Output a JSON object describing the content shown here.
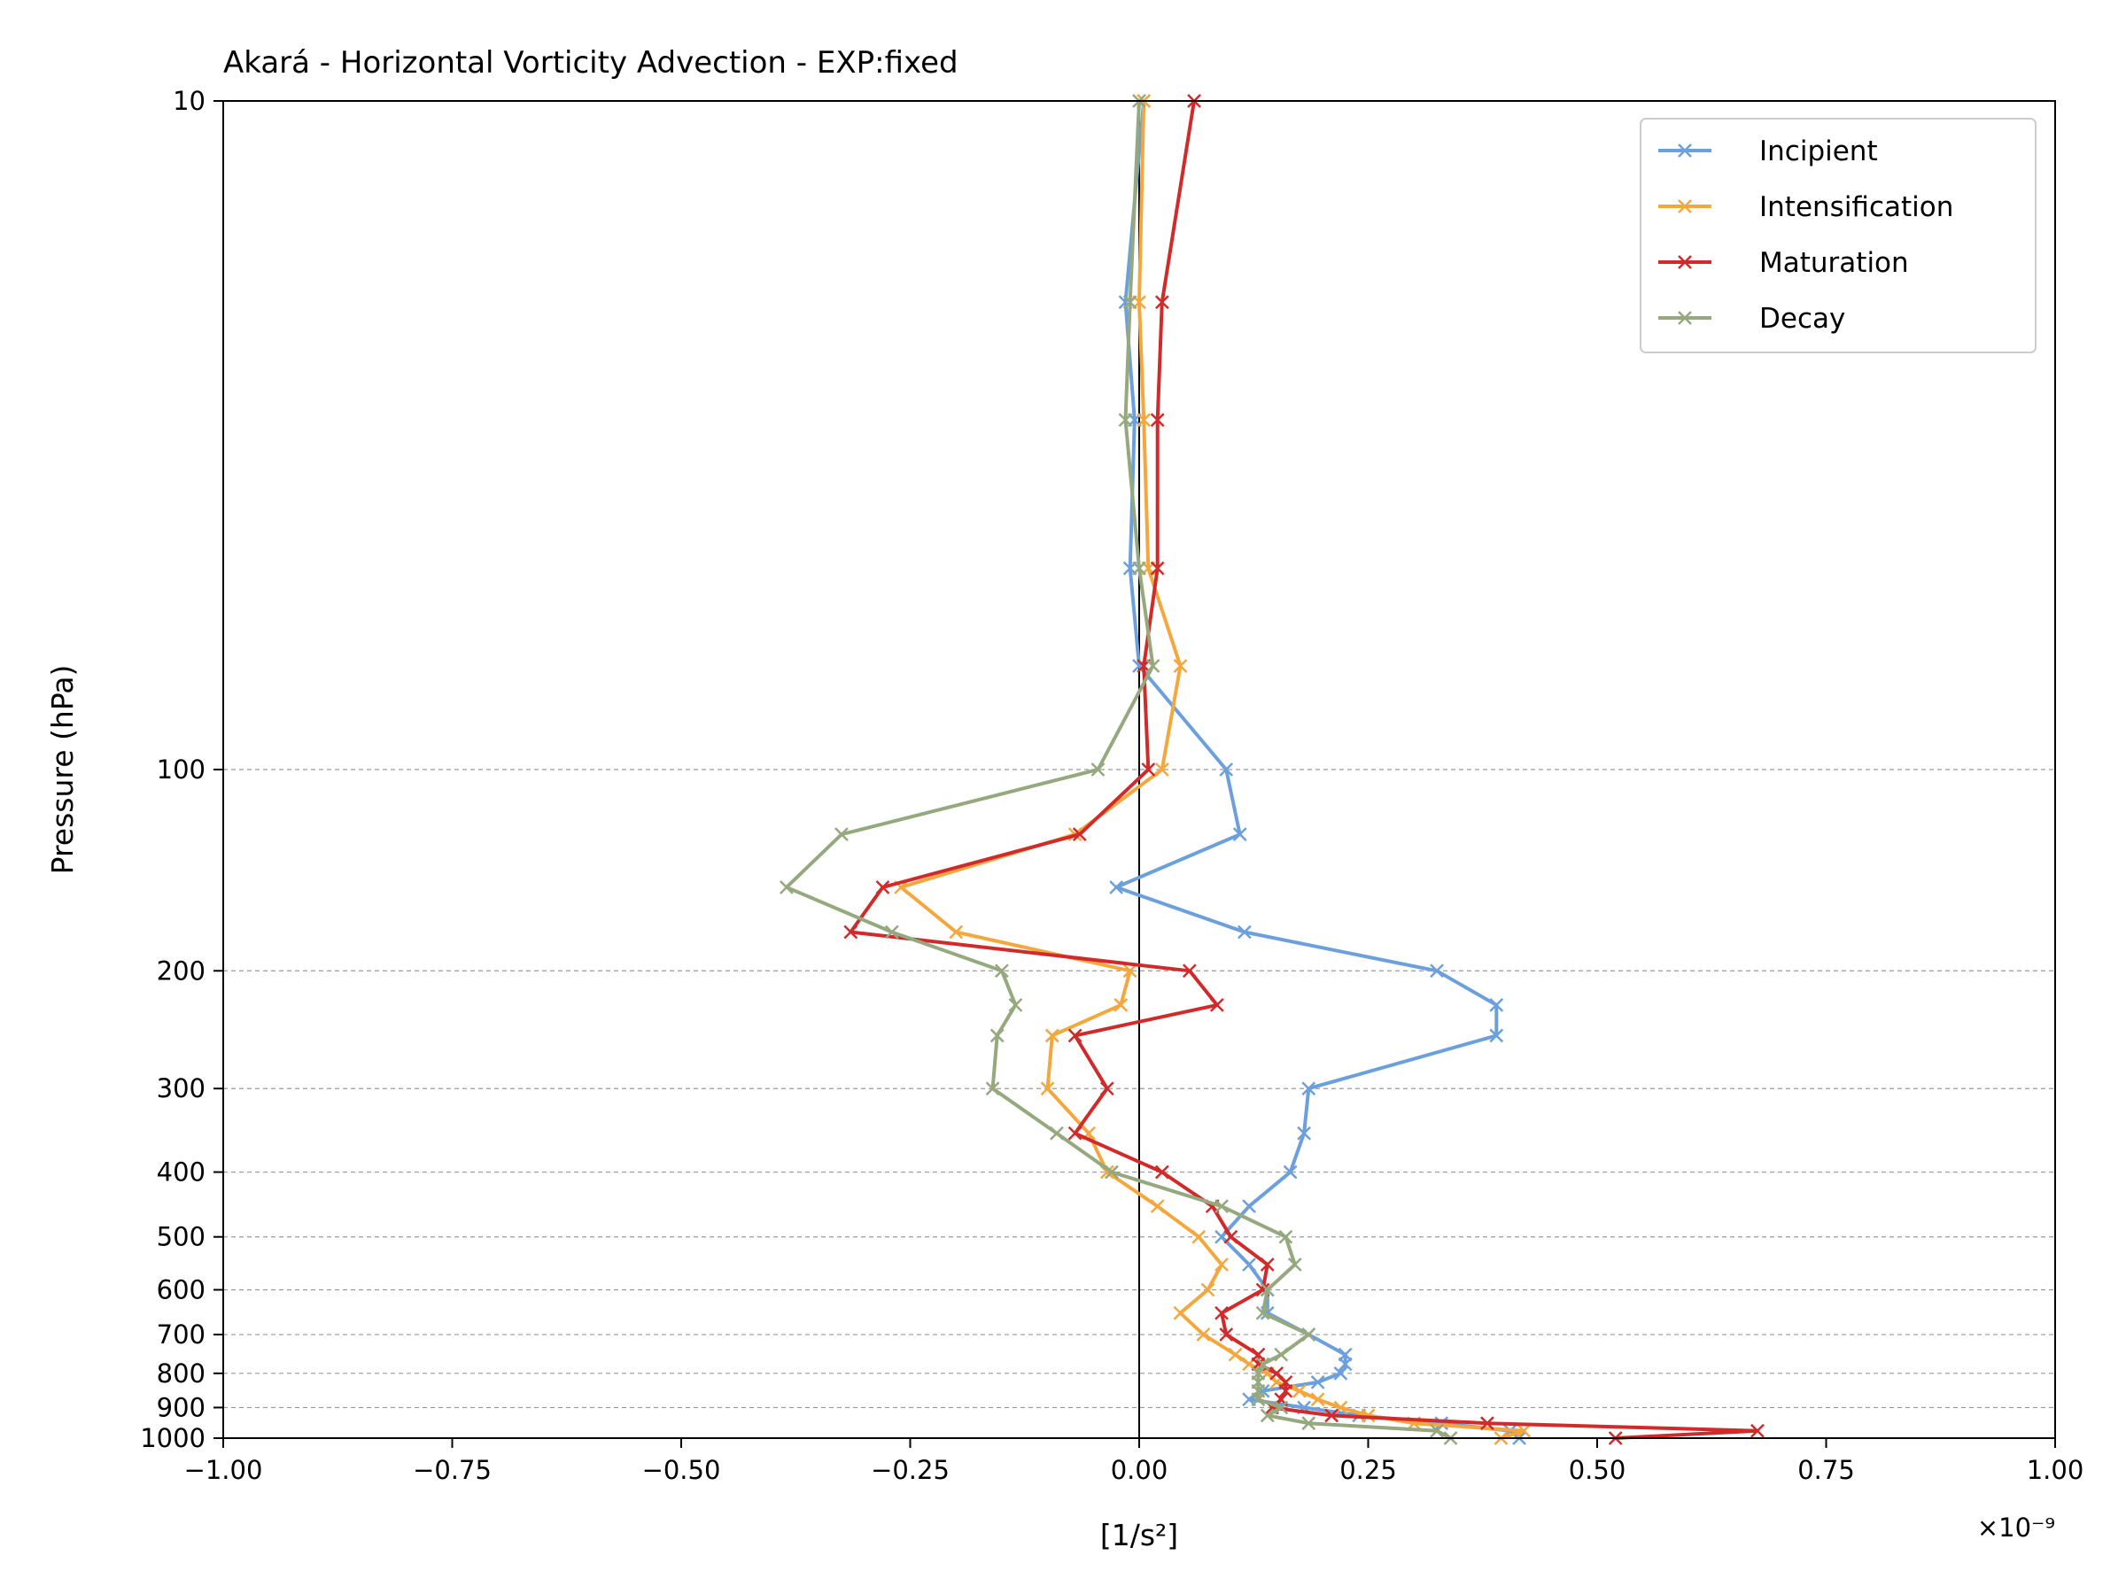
{
  "chart_data": {
    "type": "line",
    "title": "Akará - Horizontal Vorticity Advection - EXP:fixed",
    "xlabel": "[1/s²]",
    "ylabel": "Pressure (hPa)",
    "x_offset_label": "×10⁻⁹",
    "xlim": [
      -1.0,
      1.0
    ],
    "ylim": [
      1000,
      10
    ],
    "y_scale": "log",
    "x_ticks": [
      -1.0,
      -0.75,
      -0.5,
      -0.25,
      0.0,
      0.25,
      0.5,
      0.75,
      1.0
    ],
    "x_tick_labels": [
      "−1.00",
      "−0.75",
      "−0.50",
      "−0.25",
      "0.00",
      "0.25",
      "0.50",
      "0.75",
      "1.00"
    ],
    "y_ticks": [
      10,
      100,
      200,
      300,
      400,
      500,
      600,
      700,
      800,
      900,
      1000
    ],
    "y_tick_labels": [
      "10",
      "100",
      "200",
      "300",
      "400",
      "500",
      "600",
      "700",
      "800",
      "900",
      "1000"
    ],
    "grid": "horizontal dashed at y ticks",
    "vertical_zero_line": true,
    "legend_position": "top-right",
    "pressure_levels": [
      1000,
      975,
      950,
      925,
      900,
      875,
      850,
      825,
      800,
      775,
      750,
      700,
      650,
      600,
      550,
      500,
      450,
      400,
      350,
      300,
      250,
      225,
      200,
      175,
      150,
      125,
      100,
      70,
      50,
      30,
      20,
      10
    ],
    "series": [
      {
        "name": "Incipient",
        "color": "#6ca0dc",
        "values": [
          0.415,
          0.405,
          0.33,
          0.24,
          0.18,
          0.12,
          0.135,
          0.195,
          0.22,
          0.225,
          0.225,
          0.185,
          0.14,
          0.14,
          0.12,
          0.09,
          0.12,
          0.165,
          0.18,
          0.185,
          0.39,
          0.39,
          0.325,
          0.115,
          -0.025,
          0.11,
          0.095,
          0.0,
          -0.01,
          -0.005,
          -0.015,
          0.005
        ]
      },
      {
        "name": "Intensification",
        "color": "#f4a73c",
        "values": [
          0.395,
          0.42,
          0.3,
          0.25,
          0.22,
          0.195,
          0.175,
          0.15,
          0.14,
          0.12,
          0.105,
          0.07,
          0.045,
          0.075,
          0.09,
          0.065,
          0.02,
          -0.035,
          -0.055,
          -0.1,
          -0.095,
          -0.02,
          -0.01,
          -0.2,
          -0.26,
          -0.07,
          0.025,
          0.045,
          0.01,
          0.005,
          0.0,
          0.005
        ]
      },
      {
        "name": "Maturation",
        "color": "#d12a2a",
        "values": [
          0.52,
          0.675,
          0.38,
          0.21,
          0.145,
          0.155,
          0.16,
          0.16,
          0.15,
          0.13,
          0.13,
          0.095,
          0.09,
          0.135,
          0.14,
          0.1,
          0.08,
          0.025,
          -0.07,
          -0.035,
          -0.07,
          0.085,
          0.055,
          -0.315,
          -0.28,
          -0.065,
          0.01,
          0.005,
          0.02,
          0.02,
          0.025,
          0.06
        ]
      },
      {
        "name": "Decay",
        "color": "#95a87e",
        "values": [
          0.34,
          0.325,
          0.185,
          0.14,
          0.155,
          0.13,
          0.13,
          0.13,
          0.13,
          0.135,
          0.155,
          0.185,
          0.135,
          0.14,
          0.17,
          0.16,
          0.09,
          -0.03,
          -0.09,
          -0.16,
          -0.155,
          -0.135,
          -0.15,
          -0.27,
          -0.385,
          -0.325,
          -0.045,
          0.015,
          0.0,
          -0.015,
          -0.01,
          0.0
        ]
      }
    ]
  }
}
